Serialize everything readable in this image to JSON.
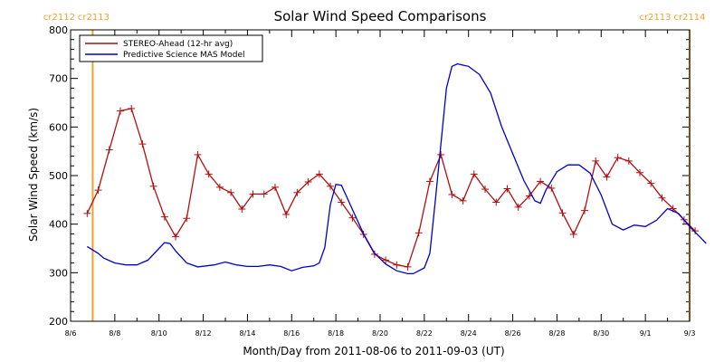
{
  "chart_data": {
    "type": "line",
    "title": "Solar Wind Speed Comparisons",
    "xlabel": "Month/Day from 2011-08-06 to 2011-09-03 (UT)",
    "ylabel": "Solar Wind Speed (km/s)",
    "xlim": [
      "2011-08-06",
      "2011-09-03"
    ],
    "ylim": [
      200,
      800
    ],
    "y_ticks": [
      200,
      300,
      400,
      500,
      600,
      700,
      800
    ],
    "x_ticks": [
      {
        "date": "2011-08-06",
        "label": "8/6"
      },
      {
        "date": "2011-08-08",
        "label": "8/8"
      },
      {
        "date": "2011-08-10",
        "label": "8/10"
      },
      {
        "date": "2011-08-12",
        "label": "8/12"
      },
      {
        "date": "2011-08-14",
        "label": "8/14"
      },
      {
        "date": "2011-08-16",
        "label": "8/16"
      },
      {
        "date": "2011-08-18",
        "label": "8/18"
      },
      {
        "date": "2011-08-20",
        "label": "8/20"
      },
      {
        "date": "2011-08-22",
        "label": "8/22"
      },
      {
        "date": "2011-08-24",
        "label": "8/24"
      },
      {
        "date": "2011-08-26",
        "label": "8/26"
      },
      {
        "date": "2011-08-28",
        "label": "8/28"
      },
      {
        "date": "2011-08-30",
        "label": "8/30"
      },
      {
        "date": "2011-09-01",
        "label": "9/1"
      },
      {
        "date": "2011-09-03",
        "label": "9/3"
      }
    ],
    "grid": false,
    "legend_position": "top-left",
    "carrington_markers": [
      {
        "date": "2011-08-07 00:00",
        "left_label": "cr2112",
        "right_label": "cr2113",
        "color": "#f0a030"
      },
      {
        "date": "2011-09-03 00:00",
        "left_label": "cr2113",
        "right_label": "cr2114",
        "color": "#f0a030"
      }
    ],
    "series": [
      {
        "name": "STEREO-Ahead (12-hr avg)",
        "color": "#b01010",
        "marker": "plus",
        "points": [
          [
            "2011-08-06 18:00",
            422
          ],
          [
            "2011-08-07 06:00",
            470
          ],
          [
            "2011-08-07 18:00",
            553
          ],
          [
            "2011-08-08 06:00",
            633
          ],
          [
            "2011-08-08 18:00",
            638
          ],
          [
            "2011-08-09 06:00",
            565
          ],
          [
            "2011-08-09 18:00",
            478
          ],
          [
            "2011-08-10 06:00",
            415
          ],
          [
            "2011-08-10 18:00",
            374
          ],
          [
            "2011-08-11 06:00",
            412
          ],
          [
            "2011-08-11 18:00",
            543
          ],
          [
            "2011-08-12 06:00",
            503
          ],
          [
            "2011-08-12 18:00",
            476
          ],
          [
            "2011-08-13 06:00",
            465
          ],
          [
            "2011-08-13 18:00",
            431
          ],
          [
            "2011-08-14 06:00",
            462
          ],
          [
            "2011-08-14 18:00",
            462
          ],
          [
            "2011-08-15 06:00",
            476
          ],
          [
            "2011-08-15 18:00",
            420
          ],
          [
            "2011-08-16 06:00",
            465
          ],
          [
            "2011-08-16 18:00",
            487
          ],
          [
            "2011-08-17 06:00",
            503
          ],
          [
            "2011-08-17 18:00",
            478
          ],
          [
            "2011-08-18 06:00",
            445
          ],
          [
            "2011-08-18 18:00",
            413
          ],
          [
            "2011-08-19 06:00",
            379
          ],
          [
            "2011-08-19 18:00",
            338
          ],
          [
            "2011-08-20 06:00",
            326
          ],
          [
            "2011-08-20 18:00",
            316
          ],
          [
            "2011-08-21 06:00",
            312
          ],
          [
            "2011-08-21 18:00",
            382
          ],
          [
            "2011-08-22 06:00",
            488
          ],
          [
            "2011-08-22 18:00",
            543
          ],
          [
            "2011-08-23 06:00",
            461
          ],
          [
            "2011-08-23 18:00",
            448
          ],
          [
            "2011-08-24 06:00",
            503
          ],
          [
            "2011-08-24 18:00",
            472
          ],
          [
            "2011-08-25 06:00",
            445
          ],
          [
            "2011-08-25 18:00",
            473
          ],
          [
            "2011-08-26 06:00",
            435
          ],
          [
            "2011-08-26 18:00",
            458
          ],
          [
            "2011-08-27 06:00",
            488
          ],
          [
            "2011-08-27 18:00",
            474
          ],
          [
            "2011-08-28 06:00",
            423
          ],
          [
            "2011-08-28 18:00",
            379
          ],
          [
            "2011-08-29 06:00",
            428
          ],
          [
            "2011-08-29 18:00",
            530
          ],
          [
            "2011-08-30 06:00",
            497
          ],
          [
            "2011-08-30 18:00",
            537
          ],
          [
            "2011-08-31 06:00",
            530
          ],
          [
            "2011-08-31 18:00",
            506
          ],
          [
            "2011-09-01 06:00",
            484
          ],
          [
            "2011-09-01 18:00",
            454
          ],
          [
            "2011-09-02 06:00",
            432
          ],
          [
            "2011-09-02 18:00",
            409
          ],
          [
            "2011-09-03 06:00",
            386
          ]
        ]
      },
      {
        "name": "Predictive Science MAS Model",
        "color": "#0000cc",
        "marker": "none",
        "points": [
          [
            "2011-08-06 18:00",
            354
          ],
          [
            "2011-08-07 06:00",
            340
          ],
          [
            "2011-08-07 12:00",
            330
          ],
          [
            "2011-08-08 00:00",
            320
          ],
          [
            "2011-08-08 12:00",
            316
          ],
          [
            "2011-08-09 00:00",
            316
          ],
          [
            "2011-08-09 12:00",
            326
          ],
          [
            "2011-08-10 00:00",
            350
          ],
          [
            "2011-08-10 06:00",
            362
          ],
          [
            "2011-08-10 12:00",
            360
          ],
          [
            "2011-08-10 18:00",
            345
          ],
          [
            "2011-08-11 06:00",
            320
          ],
          [
            "2011-08-11 18:00",
            312
          ],
          [
            "2011-08-12 12:00",
            316
          ],
          [
            "2011-08-13 00:00",
            322
          ],
          [
            "2011-08-13 12:00",
            316
          ],
          [
            "2011-08-14 00:00",
            313
          ],
          [
            "2011-08-14 12:00",
            313
          ],
          [
            "2011-08-15 00:00",
            316
          ],
          [
            "2011-08-15 12:00",
            313
          ],
          [
            "2011-08-16 00:00",
            304
          ],
          [
            "2011-08-16 12:00",
            311
          ],
          [
            "2011-08-17 00:00",
            314
          ],
          [
            "2011-08-17 06:00",
            320
          ],
          [
            "2011-08-17 12:00",
            352
          ],
          [
            "2011-08-17 18:00",
            440
          ],
          [
            "2011-08-18 00:00",
            482
          ],
          [
            "2011-08-18 06:00",
            480
          ],
          [
            "2011-08-18 18:00",
            430
          ],
          [
            "2011-08-19 06:00",
            380
          ],
          [
            "2011-08-19 18:00",
            340
          ],
          [
            "2011-08-20 06:00",
            318
          ],
          [
            "2011-08-20 18:00",
            304
          ],
          [
            "2011-08-21 06:00",
            298
          ],
          [
            "2011-08-21 12:00",
            298
          ],
          [
            "2011-08-22 00:00",
            310
          ],
          [
            "2011-08-22 06:00",
            340
          ],
          [
            "2011-08-22 12:00",
            450
          ],
          [
            "2011-08-23 00:00",
            680
          ],
          [
            "2011-08-23 06:00",
            725
          ],
          [
            "2011-08-23 12:00",
            730
          ],
          [
            "2011-08-24 00:00",
            725
          ],
          [
            "2011-08-24 12:00",
            708
          ],
          [
            "2011-08-25 00:00",
            670
          ],
          [
            "2011-08-25 12:00",
            600
          ],
          [
            "2011-08-26 00:00",
            545
          ],
          [
            "2011-08-26 12:00",
            490
          ],
          [
            "2011-08-27 00:00",
            448
          ],
          [
            "2011-08-27 06:00",
            443
          ],
          [
            "2011-08-27 12:00",
            470
          ],
          [
            "2011-08-28 00:00",
            508
          ],
          [
            "2011-08-28 12:00",
            522
          ],
          [
            "2011-08-29 00:00",
            522
          ],
          [
            "2011-08-29 12:00",
            505
          ],
          [
            "2011-08-30 00:00",
            460
          ],
          [
            "2011-08-30 12:00",
            400
          ],
          [
            "2011-08-31 00:00",
            388
          ],
          [
            "2011-08-31 12:00",
            398
          ],
          [
            "2011-09-01 00:00",
            395
          ],
          [
            "2011-09-01 12:00",
            408
          ],
          [
            "2011-09-02 00:00",
            432
          ],
          [
            "2011-09-02 12:00",
            422
          ],
          [
            "2011-09-03 00:00",
            395
          ],
          [
            "2011-09-03 12:00",
            372
          ],
          [
            "2011-09-03 18:00",
            360
          ]
        ]
      }
    ]
  }
}
